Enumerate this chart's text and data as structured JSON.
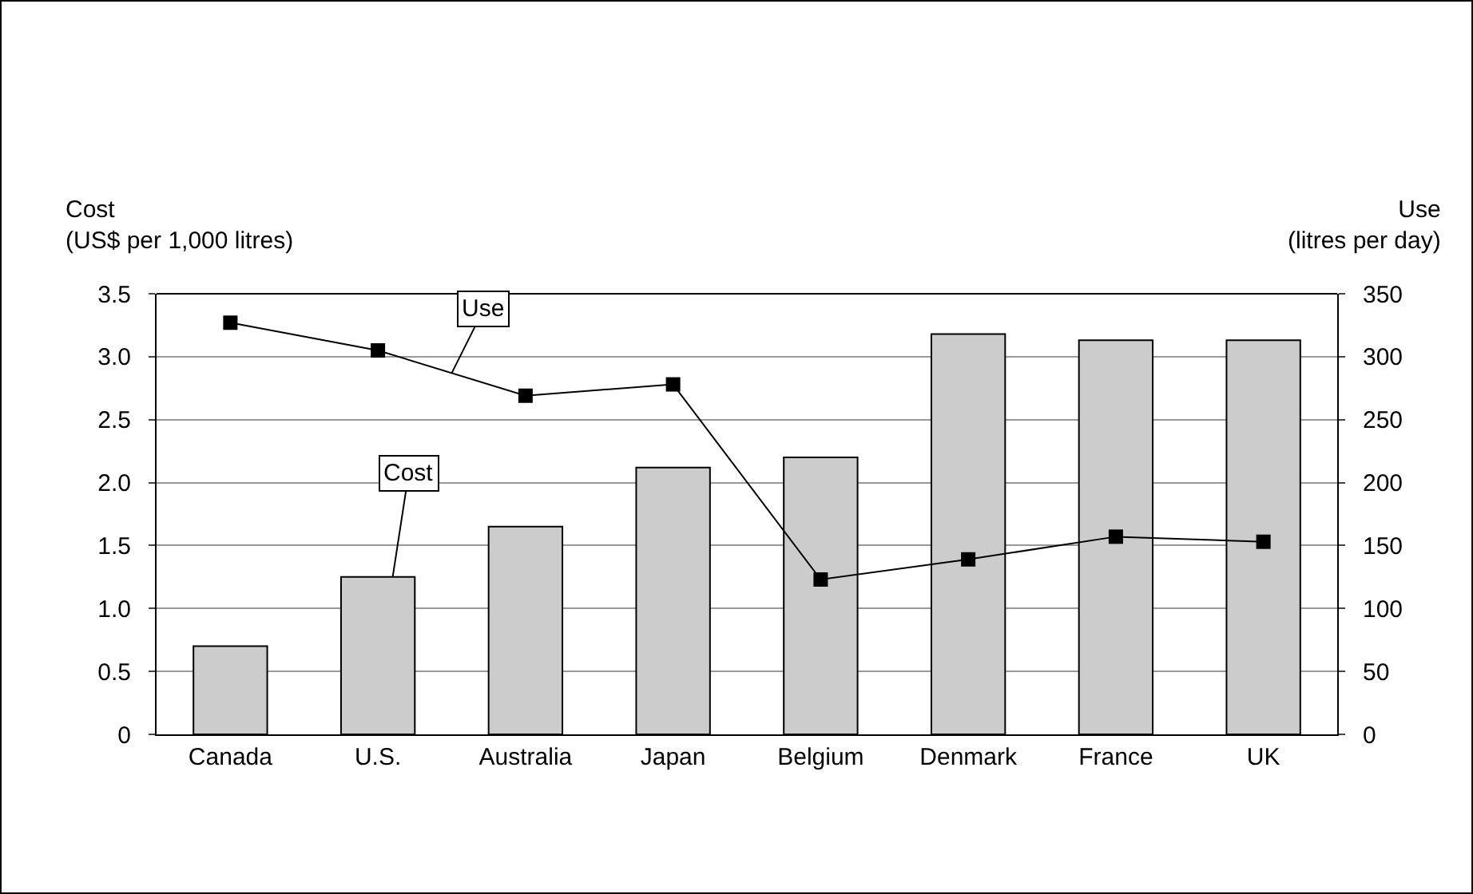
{
  "chart_data": {
    "type": "bar",
    "ylabel": "Cost\n(US$ per 1,000 litres)",
    "y2label": "Use\n(litres per day)",
    "categories": [
      "Canada",
      "U.S.",
      "Australia",
      "Japan",
      "Belgium",
      "Denmark",
      "France",
      "UK"
    ],
    "series": [
      {
        "name": "Cost",
        "color": "#cccccc",
        "values": [
          0.7,
          1.25,
          1.65,
          2.12,
          2.2,
          3.18,
          3.13,
          3.13
        ]
      },
      {
        "name": "Use",
        "type": "line",
        "axis": "y2",
        "color": "#000000",
        "values": [
          327,
          305,
          269,
          278,
          123,
          139,
          157,
          153
        ]
      }
    ],
    "ylim": [
      0,
      3.5
    ],
    "yticks": [
      0,
      0.5,
      {
        "value": 1,
        "label": "1.0"
      },
      1.5,
      {
        "value": 2,
        "label": "2.0"
      },
      2.5,
      {
        "value": 3,
        "label": "3.0"
      },
      3.5
    ],
    "y2lim": [
      0,
      350
    ],
    "y2ticks": [
      0,
      50,
      100,
      150,
      200,
      250,
      300,
      350
    ],
    "grid": "y",
    "legend": false,
    "marker": "square"
  }
}
